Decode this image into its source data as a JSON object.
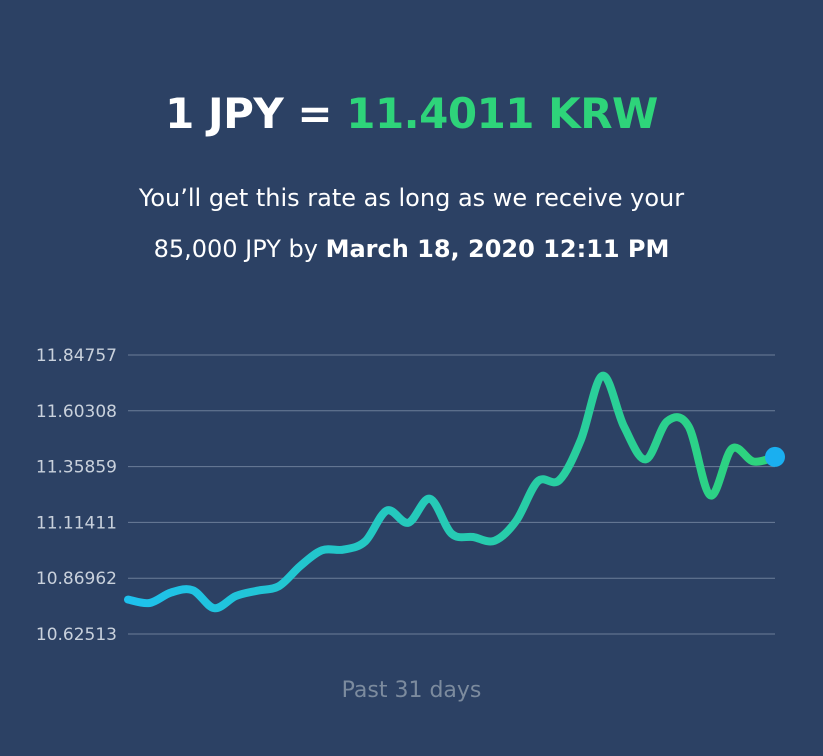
{
  "header": {
    "lhs": "1 JPY =",
    "rhs": "11.4011 KRW",
    "line1": "You’ll get this rate as long as we receive your",
    "line2_prefix": "85,000 JPY by",
    "line2_bold": "March 18, 2020 12:11 PM"
  },
  "colors": {
    "background": "#2c4164",
    "accent": "#2ed47a",
    "line_start": "#1ec1ee",
    "line_end": "#2ed47a",
    "marker": "#1aaff0",
    "grid": "#6b7d98"
  },
  "chart_data": {
    "type": "line",
    "x_caption": "Past 31 days",
    "y_ticks": [
      "11.84757",
      "11.60308",
      "11.35859",
      "11.11411",
      "10.86962",
      "10.62513"
    ],
    "ylim": [
      10.62513,
      11.84757
    ],
    "grid": true,
    "legend": "none",
    "series": [
      {
        "values": [
          10.776,
          10.761,
          10.807,
          10.817,
          10.738,
          10.791,
          10.815,
          10.835,
          10.924,
          10.992,
          10.995,
          11.031,
          11.166,
          11.113,
          11.218,
          11.065,
          11.05,
          11.034,
          11.121,
          11.294,
          11.299,
          11.476,
          11.757,
          11.534,
          11.39,
          11.557,
          11.534,
          11.233,
          11.437,
          11.381,
          11.401
        ]
      }
    ],
    "current_value": 11.4011
  }
}
